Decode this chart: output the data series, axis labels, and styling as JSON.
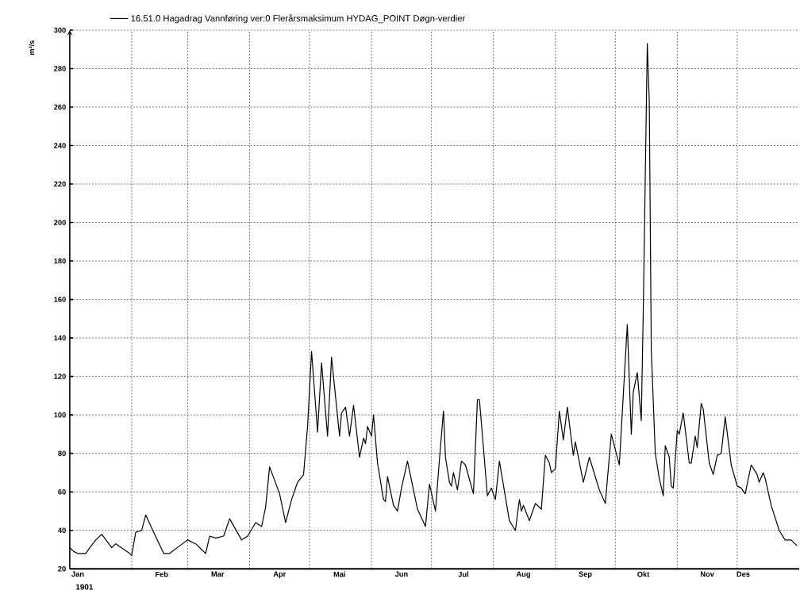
{
  "chart_data": {
    "type": "line",
    "ylabel": "m³/s",
    "annotations": [
      "1901"
    ],
    "x": [
      "1901-01-01",
      "1901-01-03",
      "1901-01-05",
      "1901-01-09",
      "1901-01-11",
      "1901-01-14",
      "1901-01-17",
      "1901-01-22",
      "1901-01-24",
      "1901-01-31",
      "1901-02-01",
      "1901-02-03",
      "1901-02-06",
      "1901-02-08",
      "1901-02-12",
      "1901-02-17",
      "1901-02-20",
      "1901-02-25",
      "1901-03-01",
      "1901-03-05",
      "1901-03-10",
      "1901-03-12",
      "1901-03-15",
      "1901-03-19",
      "1901-03-22",
      "1901-03-28",
      "1901-03-31",
      "1901-04-04",
      "1901-04-07",
      "1901-04-09",
      "1901-04-11",
      "1901-04-16",
      "1901-04-19",
      "1901-04-22",
      "1901-04-25",
      "1901-04-28",
      "1901-04-30",
      "1901-05-02",
      "1901-05-05",
      "1901-05-07",
      "1901-05-10",
      "1901-05-12",
      "1901-05-16",
      "1901-05-17",
      "1901-05-19",
      "1901-05-21",
      "1901-05-23",
      "1901-05-26",
      "1901-05-28",
      "1901-05-29",
      "1901-05-30",
      "1901-06-01",
      "1901-06-02",
      "1901-06-04",
      "1901-06-07",
      "1901-06-08",
      "1901-06-09",
      "1901-06-12",
      "1901-06-14",
      "1901-06-16",
      "1901-06-19",
      "1901-06-24",
      "1901-06-28",
      "1901-06-30",
      "1901-07-03",
      "1901-07-05",
      "1901-07-07",
      "1901-07-08",
      "1901-07-10",
      "1901-07-11",
      "1901-07-12",
      "1901-07-14",
      "1901-07-16",
      "1901-07-18",
      "1901-07-22",
      "1901-07-24",
      "1901-07-25",
      "1901-07-29",
      "1901-07-31",
      "1901-08-02",
      "1901-08-04",
      "1901-08-09",
      "1901-08-12",
      "1901-08-14",
      "1901-08-15",
      "1901-08-16",
      "1901-08-19",
      "1901-08-22",
      "1901-08-25",
      "1901-08-27",
      "1901-08-29",
      "1901-08-30",
      "1901-09-01",
      "1901-09-03",
      "1901-09-05",
      "1901-09-07",
      "1901-09-10",
      "1901-09-11",
      "1901-09-15",
      "1901-09-18",
      "1901-09-23",
      "1901-09-26",
      "1901-09-29",
      "1901-10-03",
      "1901-10-07",
      "1901-10-09",
      "1901-10-10",
      "1901-10-12",
      "1901-10-14",
      "1901-10-15",
      "1901-10-17",
      "1901-10-18",
      "1901-10-19",
      "1901-10-21",
      "1901-10-23",
      "1901-10-25",
      "1901-10-26",
      "1901-10-28",
      "1901-10-29",
      "1901-10-30",
      "1901-11-01",
      "1901-11-02",
      "1901-11-04",
      "1901-11-07",
      "1901-11-08",
      "1901-11-10",
      "1901-11-11",
      "1901-11-13",
      "1901-11-14",
      "1901-11-17",
      "1901-11-19",
      "1901-11-21",
      "1901-11-23",
      "1901-11-25",
      "1901-11-28",
      "1901-12-01",
      "1901-12-03",
      "1901-12-05",
      "1901-12-08",
      "1901-12-11",
      "1901-12-12",
      "1901-12-14",
      "1901-12-15",
      "1901-12-18",
      "1901-12-22",
      "1901-12-25",
      "1901-12-28",
      "1901-12-31"
    ],
    "series": [
      {
        "name": "16.51.0 Hagadrag Vannføring ver:0 Flerårsmaksimum HYDAG_POINT Døgn-verdier",
        "color": "#000000",
        "values": [
          31,
          29,
          28,
          28,
          31,
          35,
          38,
          31,
          33,
          28,
          27,
          39,
          40,
          48,
          39,
          28,
          28,
          32,
          35,
          33,
          28,
          37,
          36,
          37,
          46,
          35,
          37,
          44,
          42,
          52,
          73,
          59,
          44,
          56,
          65,
          69,
          94,
          133,
          91,
          127,
          89,
          130,
          89,
          101,
          104,
          89,
          105,
          78,
          88,
          85,
          94,
          89,
          100,
          75,
          56,
          55,
          68,
          53,
          50,
          62,
          76,
          51,
          42,
          64,
          50,
          77,
          102,
          78,
          65,
          63,
          70,
          61,
          76,
          74,
          59,
          108,
          108,
          58,
          62,
          56,
          76,
          45,
          40,
          56,
          50,
          53,
          45,
          54,
          51,
          79,
          75,
          70,
          72,
          102,
          87,
          104,
          79,
          86,
          65,
          78,
          61,
          54,
          90,
          74,
          147,
          90,
          112,
          122,
          97,
          155,
          293,
          263,
          134,
          80,
          67,
          58,
          84,
          78,
          63,
          62,
          92,
          90,
          101,
          75,
          75,
          89,
          83,
          106,
          103,
          75,
          69,
          79,
          80,
          99,
          74,
          63,
          62,
          59,
          74,
          69,
          65,
          70,
          67,
          53,
          40,
          35,
          35,
          32
        ]
      }
    ],
    "xlim": [
      "1901-01-01",
      "1902-01-01"
    ],
    "ylim": [
      20,
      300
    ],
    "xticks": [
      {
        "value": "1901-01-05",
        "label": "Jan"
      },
      {
        "value": "1901-02-01",
        "label": null
      },
      {
        "value": "1901-02-16",
        "label": "Feb"
      },
      {
        "value": "1901-03-01",
        "label": null
      },
      {
        "value": "1901-03-16",
        "label": "Mar"
      },
      {
        "value": "1901-04-01",
        "label": null
      },
      {
        "value": "1901-04-16",
        "label": "Apr"
      },
      {
        "value": "1901-05-01",
        "label": null
      },
      {
        "value": "1901-05-16",
        "label": "Mai"
      },
      {
        "value": "1901-06-01",
        "label": null
      },
      {
        "value": "1901-06-16",
        "label": "Jun"
      },
      {
        "value": "1901-07-01",
        "label": null
      },
      {
        "value": "1901-07-17",
        "label": "Jul"
      },
      {
        "value": "1901-08-01",
        "label": null
      },
      {
        "value": "1901-08-16",
        "label": "Aug"
      },
      {
        "value": "1901-09-01",
        "label": null
      },
      {
        "value": "1901-09-16",
        "label": "Sep"
      },
      {
        "value": "1901-10-01",
        "label": null
      },
      {
        "value": "1901-10-15",
        "label": "Okt"
      },
      {
        "value": "1901-11-01",
        "label": null
      },
      {
        "value": "1901-11-16",
        "label": "Nov"
      },
      {
        "value": "1901-12-01",
        "label": null
      },
      {
        "value": "1901-12-04",
        "label": "Des"
      }
    ],
    "yticks": [
      20,
      40,
      60,
      80,
      100,
      120,
      140,
      160,
      180,
      200,
      220,
      240,
      260,
      280,
      300
    ],
    "grid": true,
    "legend": "top",
    "marker": "none",
    "line_style": "solid"
  }
}
